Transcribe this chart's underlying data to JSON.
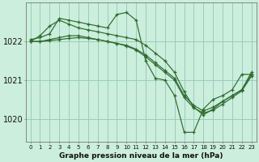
{
  "title": "Graphe pression niveau de la mer (hPa)",
  "bg_color": "#cceedd",
  "grid_color": "#99ccbb",
  "line_color": "#2d6a2d",
  "xlim": [
    -0.5,
    23.5
  ],
  "ylim": [
    1019.4,
    1023.0
  ],
  "yticks": [
    1020,
    1021,
    1022
  ],
  "xticks": [
    0,
    1,
    2,
    3,
    4,
    5,
    6,
    7,
    8,
    9,
    10,
    11,
    12,
    13,
    14,
    15,
    16,
    17,
    18,
    19,
    20,
    21,
    22,
    23
  ],
  "series": [
    [
      1022.0,
      1022.15,
      1022.4,
      1022.55,
      1022.45,
      1022.35,
      1022.3,
      1022.25,
      1022.2,
      1022.15,
      1022.1,
      1022.05,
      1021.9,
      1021.7,
      1021.5,
      1021.2,
      1020.7,
      1020.3,
      1020.1,
      1020.25,
      1020.45,
      1020.6,
      1020.75,
      1021.2
    ],
    [
      1022.05,
      1022.1,
      1022.2,
      1022.6,
      1022.55,
      1022.5,
      1022.45,
      1022.4,
      1022.35,
      1022.7,
      1022.75,
      1022.55,
      1021.5,
      1021.05,
      1021.0,
      1020.6,
      1019.65,
      1019.65,
      1020.25,
      1020.5,
      1020.6,
      1020.75,
      1021.15,
      1021.15
    ],
    [
      1022.0,
      1022.0,
      1022.05,
      1022.1,
      1022.15,
      1022.15,
      1022.1,
      1022.05,
      1022.0,
      1021.95,
      1021.9,
      1021.8,
      1021.65,
      1021.45,
      1021.25,
      1021.05,
      1020.6,
      1020.35,
      1020.2,
      1020.3,
      1020.45,
      1020.6,
      1020.75,
      1021.15
    ],
    [
      1022.0,
      1022.0,
      1022.02,
      1022.05,
      1022.08,
      1022.1,
      1022.08,
      1022.05,
      1022.0,
      1021.95,
      1021.88,
      1021.78,
      1021.6,
      1021.4,
      1021.2,
      1021.0,
      1020.55,
      1020.28,
      1020.15,
      1020.22,
      1020.38,
      1020.55,
      1020.72,
      1021.1
    ]
  ]
}
